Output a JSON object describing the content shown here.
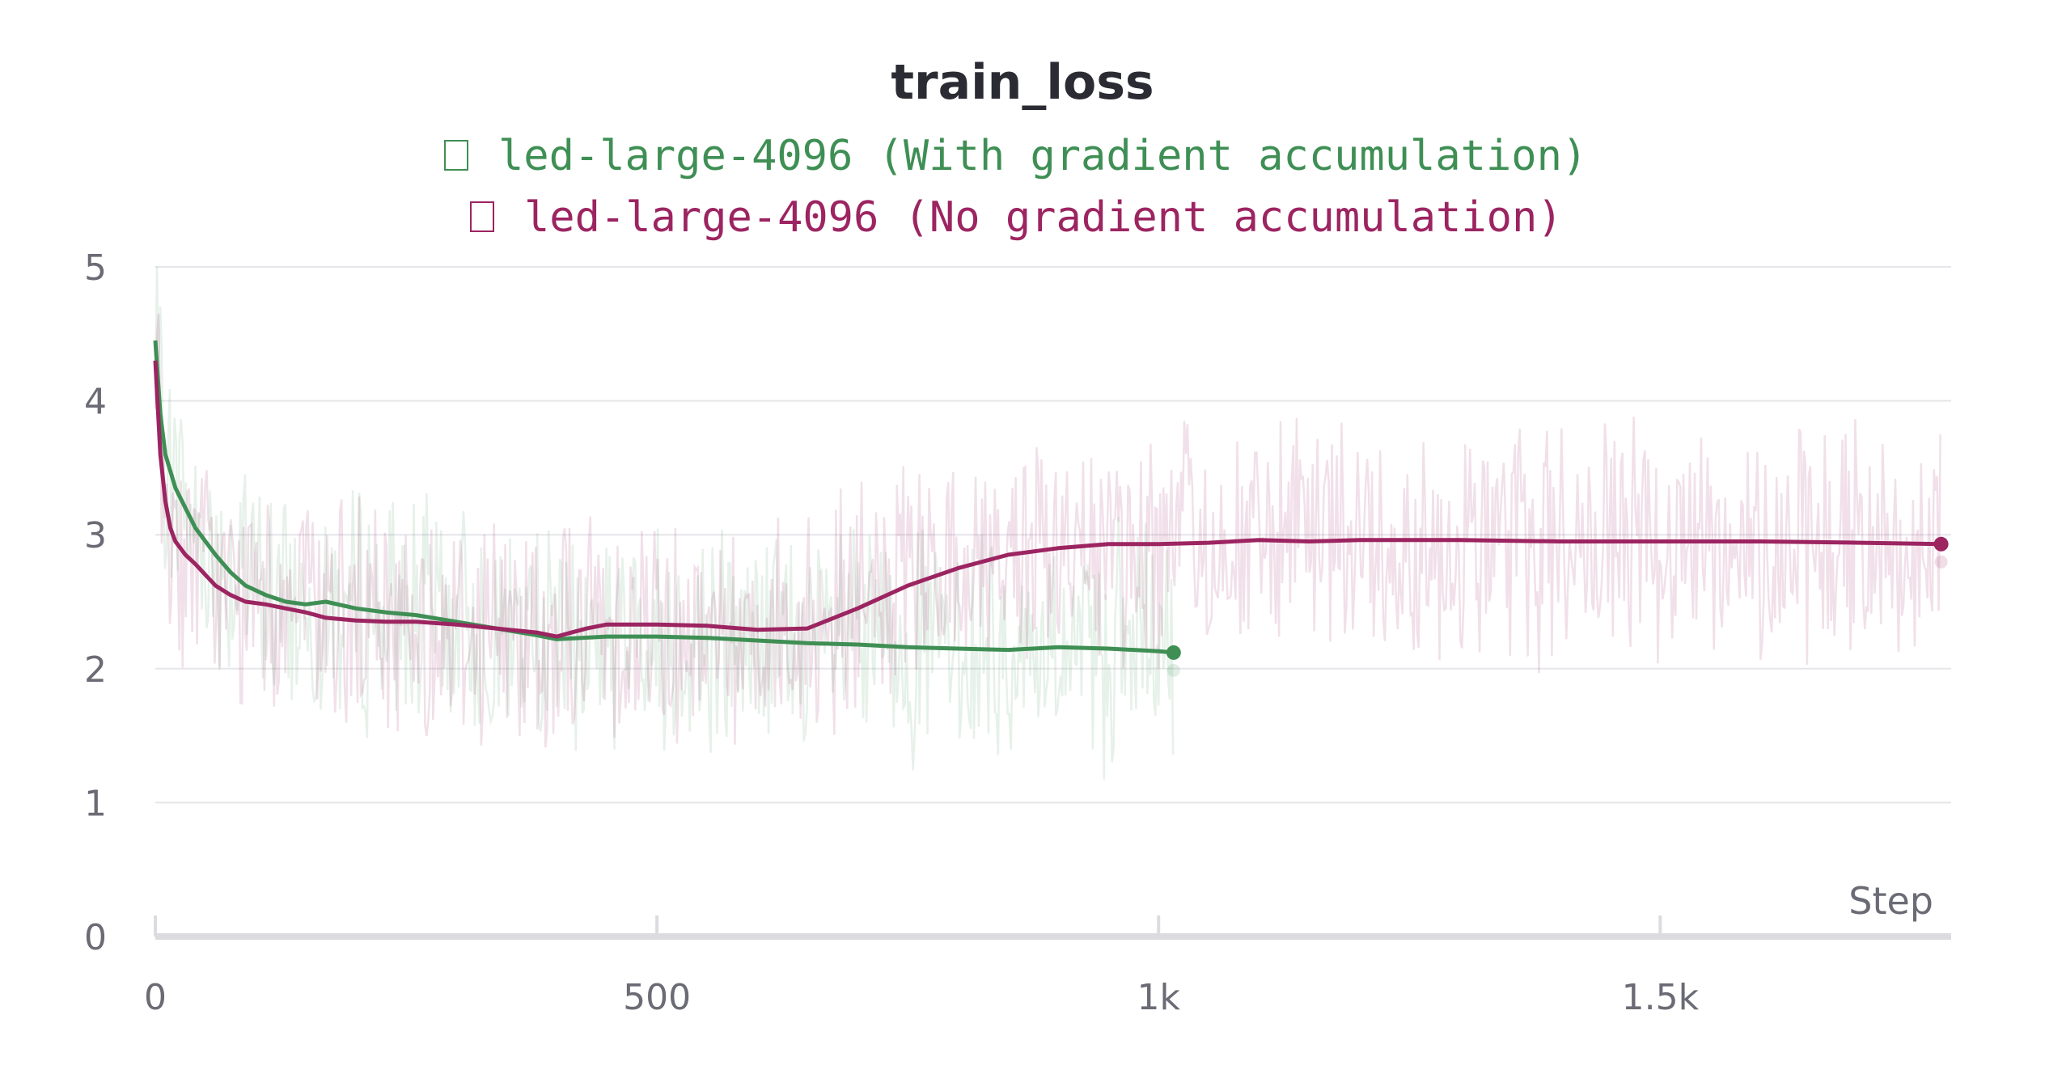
{
  "chart_data": {
    "type": "line",
    "title": "train_loss",
    "xlabel": "Step",
    "ylabel": "",
    "xlim": [
      0,
      1790
    ],
    "ylim": [
      0,
      5
    ],
    "x_ticks": [
      0,
      500,
      1000,
      1500
    ],
    "x_tick_labels": [
      "0",
      "500",
      "1k",
      "1.5k"
    ],
    "y_ticks": [
      0,
      1,
      2,
      3,
      4,
      5
    ],
    "y_tick_labels": [
      "0",
      "1",
      "2",
      "3",
      "4",
      "5"
    ],
    "grid": true,
    "legend": "top-center",
    "series": [
      {
        "name": "led-large-4096 (With gradient accumulation)",
        "color": "#3f8f55",
        "smoothed": {
          "x": [
            0,
            5,
            10,
            20,
            30,
            40,
            50,
            60,
            75,
            90,
            110,
            130,
            150,
            170,
            200,
            230,
            260,
            300,
            340,
            380,
            400,
            450,
            500,
            550,
            600,
            650,
            700,
            750,
            800,
            850,
            900,
            950,
            1000,
            1015
          ],
          "y": [
            4.45,
            3.9,
            3.6,
            3.35,
            3.2,
            3.05,
            2.95,
            2.85,
            2.72,
            2.62,
            2.55,
            2.5,
            2.48,
            2.5,
            2.45,
            2.42,
            2.4,
            2.35,
            2.3,
            2.25,
            2.22,
            2.24,
            2.24,
            2.23,
            2.21,
            2.19,
            2.18,
            2.16,
            2.15,
            2.14,
            2.16,
            2.15,
            2.13,
            2.12
          ]
        },
        "raw_range": {
          "min": 0.35,
          "max": 5.0
        }
      },
      {
        "name": "led-large-4096 (No gradient accumulation)",
        "color": "#9c2461",
        "smoothed": {
          "x": [
            0,
            5,
            10,
            15,
            20,
            30,
            40,
            50,
            60,
            75,
            90,
            110,
            130,
            150,
            170,
            200,
            230,
            260,
            300,
            340,
            380,
            400,
            410,
            430,
            450,
            500,
            550,
            600,
            650,
            700,
            750,
            800,
            850,
            900,
            950,
            1000,
            1050,
            1100,
            1150,
            1200,
            1300,
            1400,
            1500,
            1600,
            1700,
            1780
          ],
          "y": [
            4.3,
            3.6,
            3.25,
            3.05,
            2.95,
            2.85,
            2.78,
            2.7,
            2.62,
            2.55,
            2.5,
            2.48,
            2.45,
            2.42,
            2.38,
            2.36,
            2.35,
            2.35,
            2.33,
            2.3,
            2.27,
            2.24,
            2.26,
            2.3,
            2.33,
            2.33,
            2.32,
            2.29,
            2.3,
            2.45,
            2.62,
            2.75,
            2.85,
            2.9,
            2.93,
            2.93,
            2.94,
            2.96,
            2.95,
            2.96,
            2.96,
            2.95,
            2.95,
            2.95,
            2.94,
            2.93
          ]
        },
        "raw_range": {
          "min": 0.25,
          "max": 4.7
        }
      }
    ]
  }
}
